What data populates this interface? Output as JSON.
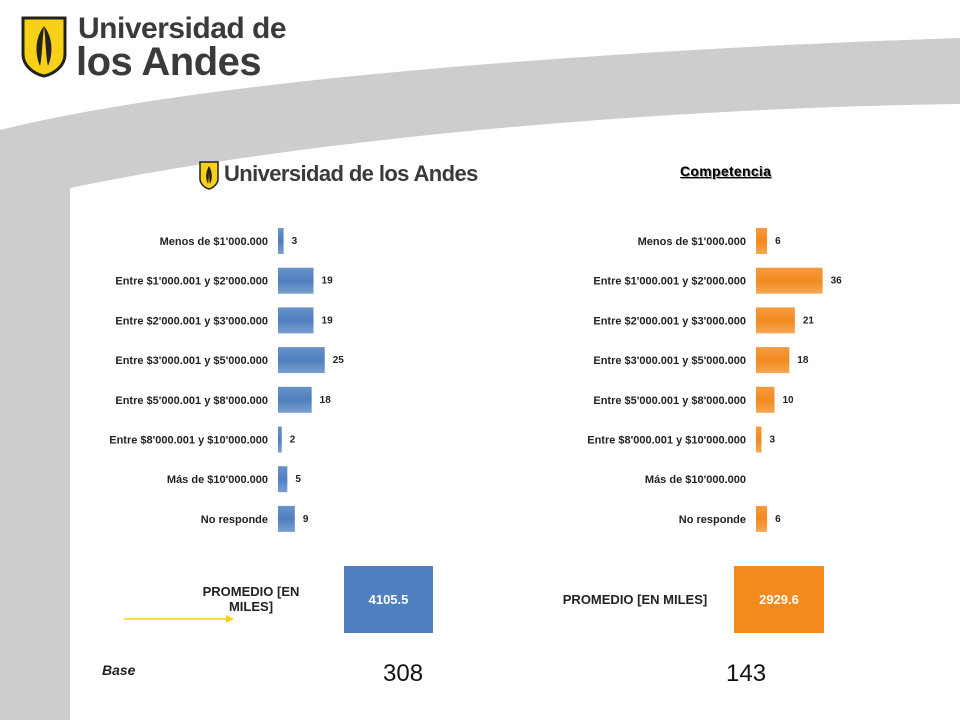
{
  "header": {
    "logo_line1": "Universidad de",
    "logo_line2": "los Andes",
    "logo_small": "Universidad de los Andes"
  },
  "chart_data": [
    {
      "type": "bar",
      "orientation": "horizontal",
      "title": "Universidad de los Andes",
      "color": "#4f7fbf",
      "categories": [
        "Menos de $1'000.000",
        "Entre $1'000.001 y $2'000.000",
        "Entre $2'000.001 y $3'000.000",
        "Entre $3'000.001 y $5'000.000",
        "Entre $5'000.001 y $8'000.000",
        "Entre $8'000.001 y $10'000.000",
        "Más de $10'000.000",
        "No responde"
      ],
      "values": [
        3,
        19,
        19,
        25,
        18,
        2,
        5,
        9
      ],
      "labels": [
        "3",
        "19",
        "19",
        "25",
        "18",
        "2",
        "5",
        "9"
      ],
      "grid": false,
      "legend": "none"
    },
    {
      "type": "bar",
      "orientation": "horizontal",
      "title": "Competencia",
      "color": "#f28a1e",
      "categories": [
        "Menos de $1'000.000",
        "Entre $1'000.001 y $2'000.000",
        "Entre $2'000.001 y $3'000.000",
        "Entre $3'000.001 y $5'000.000",
        "Entre $5'000.001 y $8'000.000",
        "Entre $8'000.001 y $10'000.000",
        "Más de $10'000.000",
        "No responde"
      ],
      "values": [
        6,
        36,
        21,
        18,
        10,
        3,
        0,
        6
      ],
      "labels": [
        "6",
        "36",
        "21",
        "18",
        "10",
        "3",
        "",
        "6"
      ],
      "grid": false,
      "legend": "none"
    }
  ],
  "summary": {
    "left_label": "PROMEDIO [EN MILES]",
    "left_value": "4105.5",
    "left_color": "#4f7fbf",
    "right_label": "PROMEDIO [EN MILES]",
    "right_value": "2929.6",
    "right_color": "#f28a1e",
    "base_label": "Base",
    "base_left": "308",
    "base_right": "143"
  }
}
